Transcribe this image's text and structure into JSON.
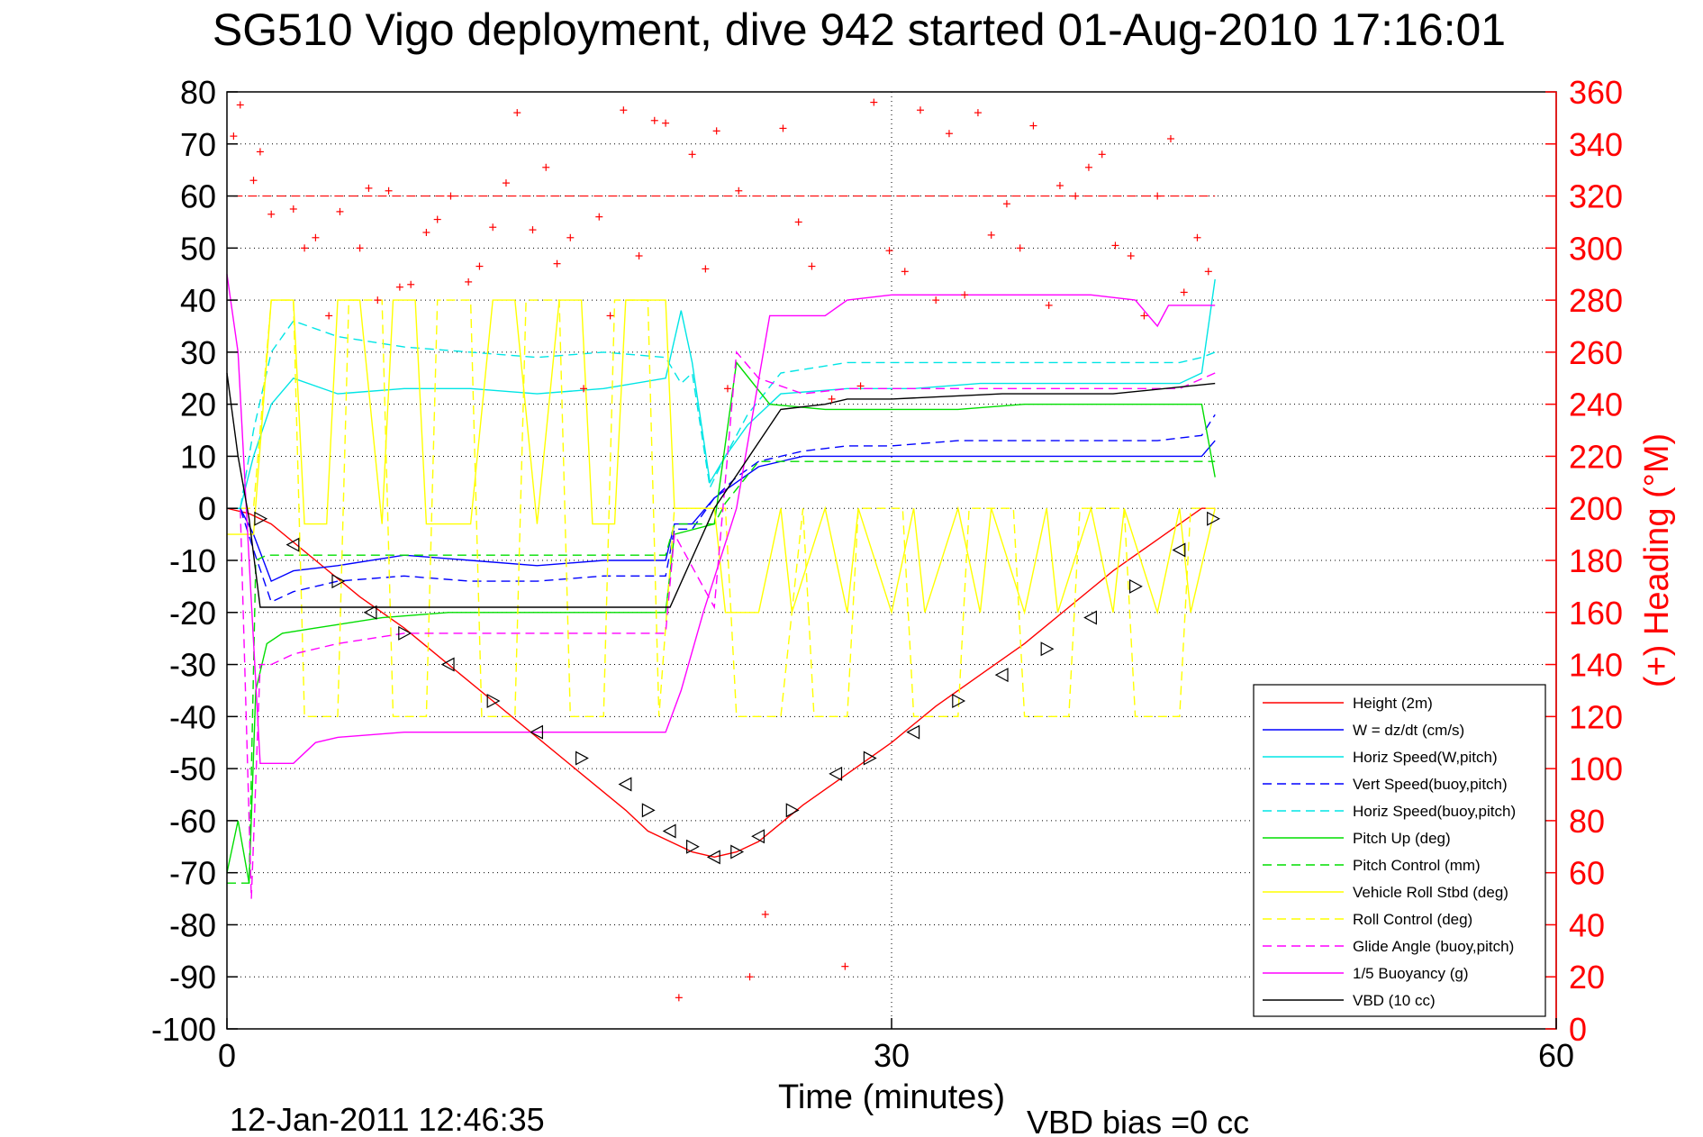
{
  "chart_data": {
    "type": "line",
    "title": "SG510 Vigo deployment, dive 942 started 01-Aug-2010 17:16:01",
    "xlabel": "Time (minutes)",
    "ylabel_right": "(+) Heading (°M)",
    "xlim": [
      0,
      60
    ],
    "ylim": [
      -100,
      80
    ],
    "ylim_right": [
      0,
      360
    ],
    "xticks": [
      "0",
      "30",
      "60"
    ],
    "yticks": [
      "80",
      "70",
      "60",
      "50",
      "40",
      "30",
      "20",
      "10",
      "0",
      "-10",
      "-20",
      "-30",
      "-40",
      "-50",
      "-60",
      "-70",
      "-80",
      "-90",
      "-100"
    ],
    "yticks_right": [
      "360",
      "340",
      "320",
      "300",
      "280",
      "260",
      "240",
      "220",
      "200",
      "180",
      "160",
      "140",
      "120",
      "100",
      "80",
      "60",
      "40",
      "20",
      "0"
    ],
    "grid": "dotted",
    "legend_position": "bottom-right",
    "footer_date": "12-Jan-2011 12:46:35",
    "footer_bias": "VBD bias =0 cc",
    "heading_target": 320,
    "series": [
      {
        "name": "Height (2m)",
        "color": "#ff0000",
        "dash": "solid",
        "x": [
          0,
          1,
          2,
          4,
          6,
          8,
          10,
          12,
          14,
          16,
          18,
          19,
          20,
          21,
          22,
          23,
          24,
          26,
          28,
          30,
          32,
          34,
          36,
          38,
          40,
          42,
          44,
          44.6
        ],
        "y": [
          0,
          -1,
          -3,
          -10,
          -17,
          -23,
          -30,
          -37,
          -44,
          -51,
          -58,
          -62,
          -64,
          -66,
          -67,
          -66,
          -64,
          -57,
          -51,
          -45,
          -38,
          -32,
          -26,
          -19,
          -12,
          -6,
          0,
          0
        ]
      },
      {
        "name": "W = dz/dt (cm/s)",
        "color": "#0000ff",
        "dash": "solid",
        "x": [
          0,
          0.6,
          1.2,
          2,
          3,
          5,
          8,
          11,
          14,
          17,
          19.8,
          20.2,
          21,
          22,
          23,
          24,
          26,
          28,
          30,
          33,
          36,
          39,
          42,
          44,
          44.6
        ],
        "y": [
          0,
          0,
          -5,
          -14,
          -12,
          -11,
          -9,
          -10,
          -11,
          -10,
          -10,
          -3,
          -3,
          2,
          5,
          8,
          10,
          10,
          10,
          10,
          10,
          10,
          10,
          10,
          13
        ]
      },
      {
        "name": "Horiz Speed(W,pitch)",
        "color": "#00e5e5",
        "dash": "solid",
        "x": [
          0,
          0.6,
          1.2,
          2,
          3,
          5,
          8,
          11,
          14,
          17,
          19.8,
          20.5,
          21,
          21.8,
          22.5,
          23.5,
          25,
          28,
          31,
          34,
          37,
          40,
          43,
          44,
          44.6
        ],
        "y": [
          0,
          0,
          10,
          20,
          25,
          22,
          23,
          23,
          22,
          23,
          25,
          38,
          28,
          5,
          10,
          16,
          22,
          23,
          23,
          24,
          24,
          24,
          24,
          26,
          44
        ]
      },
      {
        "name": "Vert Speed(buoy,pitch)",
        "color": "#0000ff",
        "dash": "dashed",
        "x": [
          0,
          0.6,
          1.2,
          2,
          3,
          5,
          8,
          11,
          14,
          17,
          19.8,
          20.2,
          21,
          22,
          23,
          24,
          26,
          28,
          30,
          33,
          36,
          39,
          42,
          44,
          44.6
        ],
        "y": [
          0,
          0,
          -8,
          -18,
          -16,
          -14,
          -13,
          -14,
          -14,
          -13,
          -13,
          -4,
          -4,
          2,
          6,
          9,
          11,
          12,
          12,
          13,
          13,
          13,
          13,
          14,
          18
        ]
      },
      {
        "name": "Horiz Speed(buoy,pitch)",
        "color": "#00e5e5",
        "dash": "dashed",
        "x": [
          0,
          0.6,
          1.2,
          2,
          3,
          5,
          8,
          11,
          14,
          17,
          19.8,
          20.5,
          21,
          21.8,
          22.5,
          23.5,
          25,
          28,
          31,
          34,
          37,
          40,
          43,
          44,
          44.6
        ],
        "y": [
          0,
          0,
          15,
          30,
          36,
          33,
          31,
          30,
          29,
          30,
          29,
          24,
          26,
          4,
          10,
          18,
          26,
          28,
          28,
          28,
          28,
          28,
          28,
          29,
          30
        ]
      },
      {
        "name": "Pitch Up (deg)",
        "color": "#00dd00",
        "dash": "solid",
        "x": [
          0,
          0.5,
          1,
          1.3,
          1.8,
          2.5,
          4,
          7,
          10,
          13,
          16,
          19.8,
          20.2,
          22,
          23,
          24.5,
          27,
          30,
          33,
          36,
          39,
          42,
          44,
          44.6
        ],
        "y": [
          -70,
          -60,
          -72,
          -35,
          -26,
          -24,
          -23,
          -21,
          -20,
          -20,
          -20,
          -20,
          -5,
          -3,
          28,
          20,
          19,
          19,
          19,
          20,
          20,
          20,
          20,
          6
        ]
      },
      {
        "name": "Pitch Control (mm)",
        "color": "#00dd00",
        "dash": "dashed",
        "x": [
          0,
          0.5,
          1,
          1.3,
          1.8,
          3,
          6,
          10,
          14,
          18,
          19.8,
          20.2,
          22,
          22.5,
          24,
          27,
          30,
          33,
          36,
          39,
          42,
          44,
          44.6
        ],
        "y": [
          -72,
          -72,
          -72,
          -10,
          -9,
          -9,
          -9,
          -9,
          -9,
          -9,
          -9,
          -3,
          -3,
          1,
          9,
          9,
          9,
          9,
          9,
          9,
          9,
          9,
          9
        ]
      },
      {
        "name": "Vehicle Roll Stbd (deg)",
        "color": "#ffff00",
        "dash": "solid",
        "x": [
          0,
          1.2,
          2,
          3,
          3.5,
          4.5,
          5,
          6,
          7,
          7.5,
          8.5,
          9,
          11,
          12,
          13,
          14,
          15,
          16,
          16.5,
          17.5,
          18,
          19.8,
          20.2,
          22,
          22.5,
          24,
          25,
          25.5,
          27,
          28,
          28.5,
          30,
          31,
          31.5,
          33,
          34,
          34.5,
          36,
          37,
          37.5,
          39,
          40,
          40.5,
          42,
          43,
          43.5,
          44.6
        ],
        "y": [
          -5,
          -5,
          40,
          40,
          -3,
          -3,
          40,
          40,
          -3,
          40,
          40,
          -3,
          -3,
          40,
          40,
          -3,
          40,
          40,
          -3,
          -3,
          40,
          40,
          0,
          0,
          -20,
          -20,
          0,
          -20,
          0,
          -20,
          0,
          -20,
          0,
          -20,
          0,
          -20,
          0,
          -20,
          0,
          -20,
          0,
          -20,
          0,
          -20,
          0,
          -20,
          0
        ]
      },
      {
        "name": "Roll Control (deg)",
        "color": "#ffff00",
        "dash": "dashed",
        "x": [
          0,
          1.2,
          2,
          3,
          3.5,
          5,
          5.5,
          7,
          7.5,
          9,
          9.5,
          11,
          11.5,
          13,
          13.5,
          15,
          15.5,
          17,
          17.5,
          19,
          19.5,
          20.2,
          21,
          22.5,
          23,
          25,
          26,
          26.5,
          28,
          28.5,
          30.5,
          31,
          33,
          33.5,
          35.5,
          36,
          38,
          38.5,
          40.5,
          41,
          43,
          43.5,
          44.6
        ],
        "y": [
          0,
          0,
          40,
          40,
          -40,
          -40,
          40,
          40,
          -40,
          -40,
          40,
          40,
          -40,
          -40,
          40,
          40,
          -40,
          -40,
          40,
          40,
          -40,
          0,
          0,
          0,
          -40,
          -40,
          0,
          -40,
          -40,
          0,
          0,
          -40,
          -40,
          0,
          0,
          -40,
          -40,
          0,
          0,
          -40,
          -40,
          0,
          0
        ]
      },
      {
        "name": "Glide Angle (buoy,pitch)",
        "color": "#ff00ff",
        "dash": "dashed",
        "x": [
          0,
          0.6,
          1.1,
          1.5,
          2,
          3,
          5,
          8,
          11,
          14,
          17,
          19.8,
          20.2,
          22,
          23,
          24,
          26,
          28,
          31,
          34,
          37,
          40,
          43,
          44.6
        ],
        "y": [
          0,
          0,
          -75,
          -30,
          -30,
          -28,
          -26,
          -24,
          -24,
          -24,
          -24,
          -24,
          -5,
          -19,
          30,
          25,
          22,
          23,
          23,
          23,
          23,
          23,
          23,
          26
        ]
      },
      {
        "name": "1/5 Buoyancy (g)",
        "color": "#ff00ff",
        "dash": "solid",
        "x": [
          0,
          0.5,
          1,
          1.5,
          2,
          3,
          4,
          5,
          8,
          12,
          16,
          19.8,
          20.5,
          21.5,
          23,
          24.5,
          27,
          28,
          30,
          33,
          36,
          39,
          41,
          42,
          42.5,
          44.6
        ],
        "y": [
          45,
          30,
          -10,
          -49,
          -49,
          -49,
          -45,
          -44,
          -43,
          -43,
          -43,
          -43,
          -35,
          -20,
          0,
          37,
          37,
          40,
          41,
          41,
          41,
          41,
          40,
          35,
          39,
          39
        ]
      },
      {
        "name": "VBD (10 cc)",
        "color": "#000000",
        "dash": "solid",
        "x": [
          0,
          0.5,
          1,
          1.5,
          2,
          5,
          10,
          15,
          20,
          22,
          25,
          27,
          28,
          30,
          35,
          40,
          44.6
        ],
        "y": [
          26,
          10,
          -2,
          -19,
          -19,
          -19,
          -19,
          -19,
          -19,
          0,
          19,
          20,
          21,
          21,
          22,
          22,
          24
        ]
      }
    ],
    "heading_points": {
      "x": [
        0.3,
        0.6,
        1.2,
        1.5,
        2.0,
        3.0,
        3.5,
        4.0,
        4.6,
        5.1,
        6.0,
        6.4,
        6.8,
        7.3,
        7.8,
        8.3,
        9.0,
        9.5,
        10.1,
        10.9,
        11.4,
        12.0,
        12.6,
        13.1,
        13.8,
        14.4,
        14.9,
        15.5,
        16.1,
        16.8,
        17.3,
        17.9,
        18.6,
        19.3,
        19.8,
        20.4,
        21.0,
        21.6,
        22.1,
        22.6,
        23.1,
        23.6,
        24.3,
        25.1,
        25.8,
        26.4,
        27.3,
        27.9,
        28.6,
        29.2,
        29.9,
        30.6,
        31.3,
        32.0,
        32.6,
        33.3,
        33.9,
        34.5,
        35.2,
        35.8,
        36.4,
        37.1,
        37.6,
        38.3,
        38.9,
        39.5,
        40.1,
        40.8,
        41.4,
        42.0,
        42.6,
        43.2,
        43.8,
        44.3
      ],
      "y": [
        343,
        355,
        326,
        337,
        313,
        315,
        300,
        304,
        274,
        314,
        300,
        323,
        280,
        322,
        285,
        286,
        306,
        311,
        320,
        287,
        293,
        308,
        325,
        352,
        307,
        331,
        294,
        304,
        246,
        312,
        274,
        353,
        297,
        349,
        348,
        12,
        336,
        292,
        345,
        246,
        322,
        20,
        44,
        346,
        310,
        293,
        242,
        24,
        247,
        356,
        299,
        291,
        353,
        280,
        344,
        282,
        352,
        305,
        317,
        300,
        347,
        278,
        324,
        320,
        331,
        336,
        301,
        297,
        274,
        320,
        342,
        283,
        304,
        291
      ]
    },
    "height_markers": {
      "x": [
        1.5,
        3,
        5,
        6.5,
        8,
        10,
        12,
        14,
        16,
        18,
        19,
        20,
        21,
        22,
        23,
        24,
        25.5,
        27.5,
        29,
        31,
        33,
        35,
        37,
        39,
        41,
        43,
        44.5
      ],
      "y": [
        -2,
        -7,
        -14,
        -20,
        -24,
        -30,
        -37,
        -43,
        -48,
        -53,
        -58,
        -62,
        -65,
        -67,
        -66,
        -63,
        -58,
        -51,
        -48,
        -43,
        -37,
        -32,
        -27,
        -21,
        -15,
        -8,
        -2
      ]
    }
  }
}
